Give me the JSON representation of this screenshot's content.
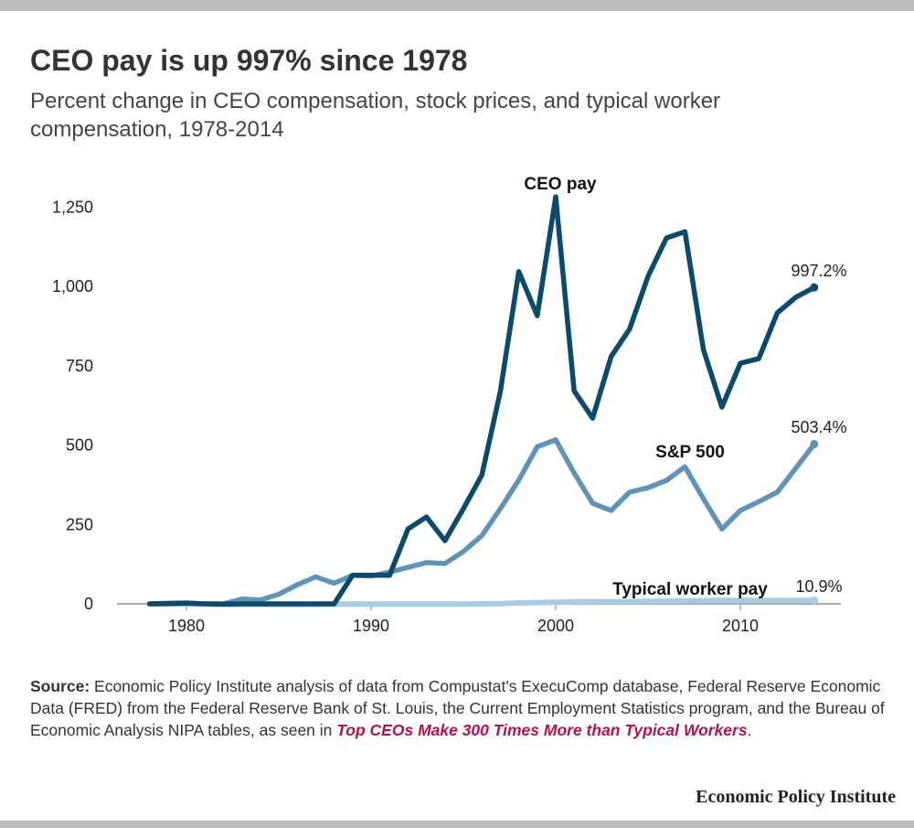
{
  "title": "CEO pay is up 997% since 1978",
  "subtitle": "Percent change in CEO compensation, stock prices, and typical worker compensation, 1978-2014",
  "source": {
    "label": "Source:",
    "text": " Economic Policy Institute analysis of data from Compustat's ExecuComp database, Federal Reserve Economic Data (FRED) from the Federal Reserve Bank of St. Louis, the Current Employment Statistics program, and the Bureau of Economic Analysis NIPA tables, as seen in ",
    "link": "Top CEOs Make 300 Times More than Typical Workers",
    "end": "."
  },
  "logo": "Economic Policy Institute",
  "chart_data": {
    "type": "line",
    "title": "",
    "xlabel": "",
    "ylabel": "",
    "xlim": [
      1978,
      2014
    ],
    "ylim": [
      0,
      1300
    ],
    "grid": false,
    "x_ticks": [
      "1980",
      "1990",
      "2000",
      "2010"
    ],
    "y_ticks": [
      "0",
      "250",
      "500",
      "750",
      "1,000",
      "1,250"
    ],
    "x": [
      1978,
      1979,
      1980,
      1981,
      1982,
      1983,
      1984,
      1985,
      1986,
      1987,
      1988,
      1989,
      1990,
      1991,
      1992,
      1993,
      1994,
      1995,
      1996,
      1997,
      1998,
      1999,
      2000,
      2001,
      2002,
      2003,
      2004,
      2005,
      2006,
      2007,
      2008,
      2009,
      2010,
      2011,
      2012,
      2013,
      2014
    ],
    "series": [
      {
        "name": "CEO pay",
        "color": "#0b4a6b",
        "end_label": "997.2%",
        "values": [
          0,
          1,
          2,
          0,
          -1,
          0,
          0,
          0,
          0,
          0,
          0,
          90,
          90,
          90,
          236,
          274,
          199,
          300,
          406,
          669,
          1047,
          908,
          1283,
          671,
          585,
          779,
          866,
          1032,
          1153,
          1173,
          801,
          620,
          758,
          773,
          917,
          966,
          997.2
        ]
      },
      {
        "name": "S&P 500",
        "color": "#5f93b7",
        "end_label": "503.4%",
        "values": [
          0,
          2,
          3,
          0,
          0,
          15,
          12,
          30,
          60,
          85,
          65,
          90,
          88,
          100,
          115,
          130,
          127,
          165,
          215,
          300,
          390,
          495,
          517,
          412,
          317,
          294,
          352,
          366,
          389,
          432,
          331,
          236,
          294,
          322,
          352,
          427,
          503.4
        ]
      },
      {
        "name": "Typical worker pay",
        "color": "#a9cbe6",
        "end_label": "10.9%",
        "values": [
          0,
          0,
          -1,
          -1,
          -2,
          -2,
          -2,
          -2,
          -2,
          -2,
          -1,
          -1,
          -1,
          -1,
          -1,
          -1,
          -1,
          -1,
          0,
          1,
          3,
          4,
          5,
          6,
          7,
          7,
          7,
          8,
          8,
          9,
          10,
          11,
          11,
          11,
          11,
          11,
          10.9
        ]
      }
    ]
  }
}
